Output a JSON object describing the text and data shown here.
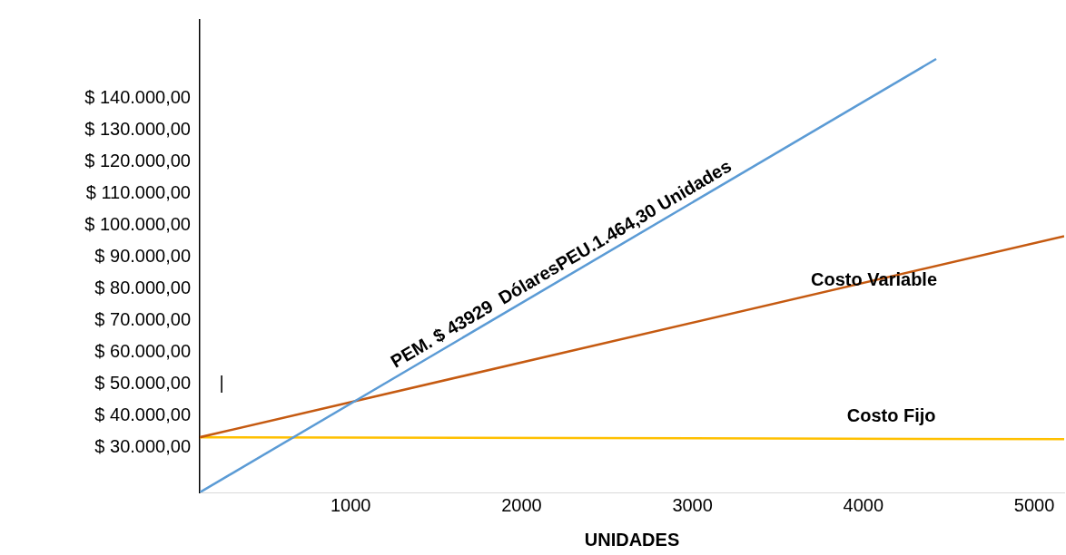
{
  "chart_data": {
    "type": "line",
    "xlabel": "UNIDADES",
    "xlim": [
      117,
      5175
    ],
    "xticks": [
      1000,
      2000,
      3000,
      4000,
      5000
    ],
    "ylim": [
      15700,
      164700
    ],
    "yticks": [
      {
        "value": 30000,
        "label": "$ 30.000,00"
      },
      {
        "value": 40000,
        "label": "$ 40.000,00"
      },
      {
        "value": 50000,
        "label": "$ 50.000,00"
      },
      {
        "value": 60000,
        "label": "$ 60.000,00"
      },
      {
        "value": 70000,
        "label": "$ 70.000,00"
      },
      {
        "value": 80000,
        "label": "$ 80.000,00"
      },
      {
        "value": 90000,
        "label": "$ 90.000,00"
      },
      {
        "value": 100000,
        "label": "$ 100.000,00"
      },
      {
        "value": 110000,
        "label": "$ 110.000,00"
      },
      {
        "value": 120000,
        "label": "$ 120.000,00"
      },
      {
        "value": 130000,
        "label": "$ 130.000,00"
      },
      {
        "value": 140000,
        "label": "$ 140.000,00"
      }
    ],
    "series": [
      {
        "name": "PEM. $ 43929  DólaresPEU.1.464,30 Unidades",
        "color": "#5b9bd5",
        "x": [
          117,
          4426
        ],
        "values": [
          15700,
          152400
        ]
      },
      {
        "name": "Costo Variable",
        "color": "#c55a11",
        "x": [
          117,
          5175
        ],
        "values": [
          33100,
          96500
        ]
      },
      {
        "name": "Costo Fijo",
        "color": "#ffc000",
        "x": [
          117,
          5175
        ],
        "values": [
          33100,
          32500
        ]
      }
    ],
    "annotations": [
      "|"
    ],
    "grid": false,
    "legend": false,
    "marker": "none",
    "line_style": "solid"
  }
}
